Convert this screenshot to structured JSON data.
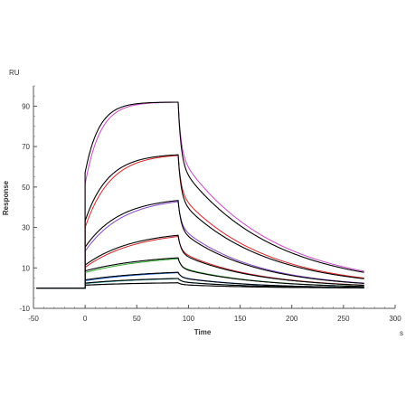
{
  "chart_data": {
    "type": "line",
    "title": "",
    "xlabel": "Time",
    "ylabel": "Response",
    "x_unit": "s",
    "y_unit": "RU",
    "xlim": [
      -50,
      300
    ],
    "ylim": [
      -10,
      100
    ],
    "x_ticks": [
      -50,
      0,
      50,
      100,
      150,
      200,
      250,
      300
    ],
    "y_ticks": [
      -10,
      10,
      30,
      50,
      70,
      90
    ],
    "grid": false,
    "legend": "none",
    "association_start": 0,
    "dissociation_start": 90,
    "end_time": 270,
    "series": [
      {
        "color": "#000000",
        "fit_color": "#cc44cc",
        "plateau": 92.0,
        "kon": 0.075,
        "jump": 0.62,
        "koff": 0.0115
      },
      {
        "color": "#000000",
        "fit_color": "#dd2222",
        "plateau": 66.5,
        "kon": 0.045,
        "jump": 0.5,
        "koff": 0.0125
      },
      {
        "color": "#000000",
        "fit_color": "#8844cc",
        "plateau": 45.0,
        "kon": 0.03,
        "jump": 0.45,
        "koff": 0.014
      },
      {
        "color": "#000000",
        "fit_color": "#cc2222",
        "plateau": 28.5,
        "kon": 0.022,
        "jump": 0.4,
        "koff": 0.014
      },
      {
        "color": "#000000",
        "fit_color": "#33aa33",
        "plateau": 17.0,
        "kon": 0.016,
        "jump": 0.5,
        "koff": 0.014
      },
      {
        "color": "#000000",
        "fit_color": "#2266dd",
        "plateau": 9.0,
        "kon": 0.016,
        "jump": 0.45,
        "koff": 0.015
      },
      {
        "color": "#000000",
        "fit_color": "#22aaaa",
        "plateau": 5.5,
        "kon": 0.016,
        "jump": 0.45,
        "koff": 0.015
      },
      {
        "color": "#000000",
        "fit_color": "#888888",
        "plateau": 3.0,
        "kon": 0.016,
        "jump": 0.5,
        "koff": 0.015
      }
    ]
  }
}
